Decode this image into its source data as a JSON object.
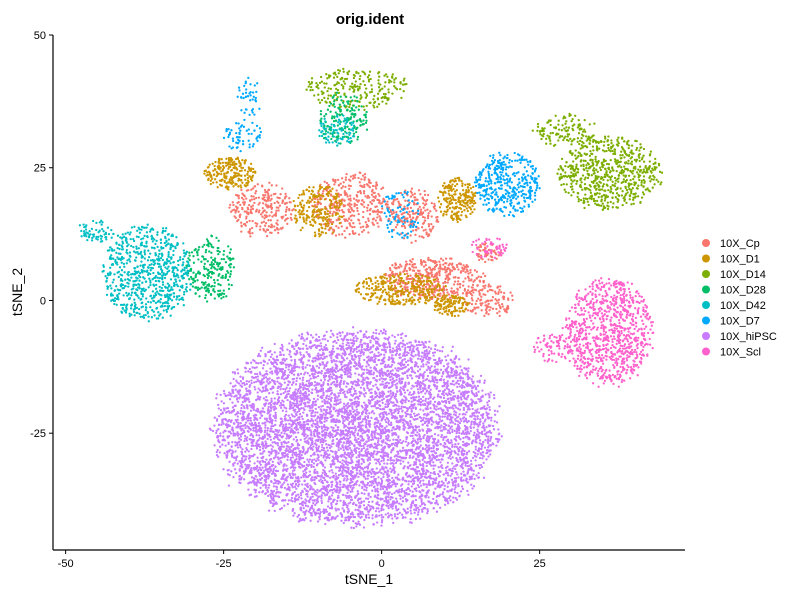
{
  "chart_data": {
    "type": "scatter",
    "title": "orig.ident",
    "xlabel": "tSNE_1",
    "ylabel": "tSNE_2",
    "xlim": [
      -52,
      48
    ],
    "ylim": [
      -47,
      50
    ],
    "x_ticks": [
      {
        "value": -50,
        "label": "-50"
      },
      {
        "value": -25,
        "label": "-25"
      },
      {
        "value": 0,
        "label": "0"
      },
      {
        "value": 25,
        "label": "25"
      }
    ],
    "y_ticks": [
      {
        "value": 50,
        "label": "50"
      },
      {
        "value": 25,
        "label": "25"
      },
      {
        "value": 0,
        "label": "0"
      },
      {
        "value": -25,
        "label": "-25"
      }
    ],
    "grid": false,
    "legend_position": "right",
    "series": [
      {
        "name": "10X_Cp",
        "color": "#F8766D",
        "clusters": [
          {
            "cx": -19,
            "cy": 17,
            "rx": 5,
            "ry": 5,
            "n": 250
          },
          {
            "cx": -5,
            "cy": 18,
            "rx": 6,
            "ry": 6,
            "n": 350
          },
          {
            "cx": 5,
            "cy": 16,
            "rx": 4,
            "ry": 5,
            "n": 200
          },
          {
            "cx": 8,
            "cy": 4,
            "rx": 8,
            "ry": 4,
            "n": 420
          },
          {
            "cx": 17,
            "cy": 0,
            "rx": 4,
            "ry": 3,
            "n": 120
          },
          {
            "cx": 17,
            "cy": 9,
            "rx": 2,
            "ry": 2,
            "n": 60
          }
        ]
      },
      {
        "name": "10X_D1",
        "color": "#CD9600",
        "clusters": [
          {
            "cx": -24,
            "cy": 24,
            "rx": 4,
            "ry": 3,
            "n": 220
          },
          {
            "cx": -10,
            "cy": 17,
            "rx": 4,
            "ry": 5,
            "n": 220
          },
          {
            "cx": 12,
            "cy": 19,
            "rx": 3,
            "ry": 4,
            "n": 220
          },
          {
            "cx": 3,
            "cy": 2,
            "rx": 7,
            "ry": 3,
            "n": 300
          },
          {
            "cx": 11,
            "cy": -1,
            "rx": 3,
            "ry": 2,
            "n": 120
          }
        ]
      },
      {
        "name": "10X_D14",
        "color": "#7CAE00",
        "clusters": [
          {
            "cx": 36,
            "cy": 24,
            "rx": 8,
            "ry": 7,
            "n": 650
          },
          {
            "cx": -4,
            "cy": 40,
            "rx": 8,
            "ry": 4,
            "n": 220
          },
          {
            "cx": 29,
            "cy": 32,
            "rx": 5,
            "ry": 3,
            "n": 120
          }
        ]
      },
      {
        "name": "10X_D28",
        "color": "#00BE67",
        "clusters": [
          {
            "cx": -27,
            "cy": 6,
            "rx": 4,
            "ry": 6,
            "n": 220
          },
          {
            "cx": -6,
            "cy": 34,
            "rx": 4,
            "ry": 5,
            "n": 160
          }
        ]
      },
      {
        "name": "10X_D42",
        "color": "#00BFC4",
        "clusters": [
          {
            "cx": -37,
            "cy": 5,
            "rx": 7,
            "ry": 9,
            "n": 700
          },
          {
            "cx": -45,
            "cy": 13,
            "rx": 3,
            "ry": 2,
            "n": 60
          },
          {
            "cx": -7,
            "cy": 32,
            "rx": 3,
            "ry": 3,
            "n": 80
          }
        ]
      },
      {
        "name": "10X_D7",
        "color": "#00A9FF",
        "clusters": [
          {
            "cx": 20,
            "cy": 22,
            "rx": 5,
            "ry": 6,
            "n": 380
          },
          {
            "cx": -22,
            "cy": 31,
            "rx": 3,
            "ry": 3,
            "n": 60
          },
          {
            "cx": -21,
            "cy": 38,
            "rx": 2,
            "ry": 4,
            "n": 40
          },
          {
            "cx": 3,
            "cy": 16,
            "rx": 3,
            "ry": 5,
            "n": 80
          }
        ]
      },
      {
        "name": "10X_hiPSC",
        "color": "#C77CFF",
        "clusters": [
          {
            "cx": -4,
            "cy": -24,
            "rx": 22,
            "ry": 18,
            "n": 6500
          }
        ]
      },
      {
        "name": "10X_Scl",
        "color": "#FF61CC",
        "clusters": [
          {
            "cx": 36,
            "cy": -6,
            "rx": 7,
            "ry": 10,
            "n": 900
          },
          {
            "cx": 27,
            "cy": -9,
            "rx": 3,
            "ry": 3,
            "n": 70
          },
          {
            "cx": 17,
            "cy": 10,
            "rx": 3,
            "ry": 2,
            "n": 50
          }
        ]
      }
    ]
  }
}
